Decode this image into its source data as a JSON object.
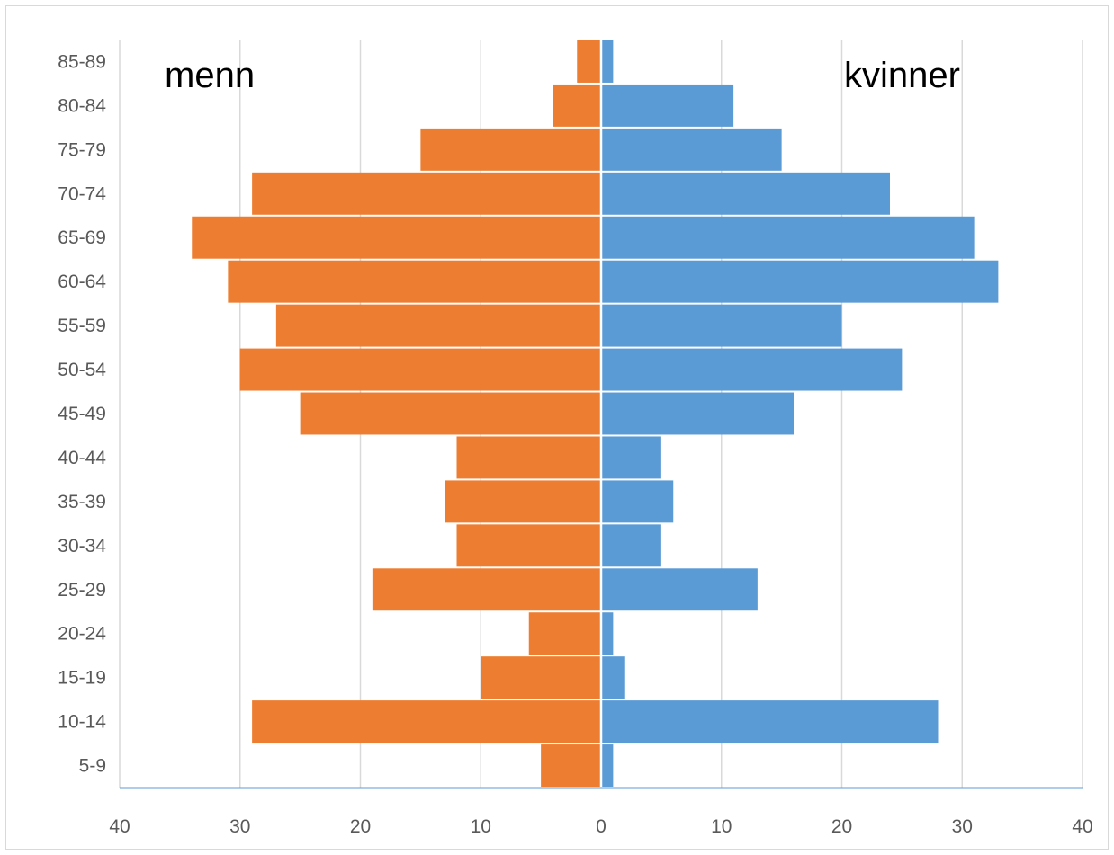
{
  "chart_data": {
    "type": "bar",
    "orientation": "horizontal",
    "layout": "population-pyramid",
    "categories": [
      "85-89",
      "80-84",
      "75-79",
      "70-74",
      "65-69",
      "60-64",
      "55-59",
      "50-54",
      "45-49",
      "40-44",
      "35-39",
      "30-34",
      "25-29",
      "20-24",
      "15-19",
      "10-14",
      "5-9"
    ],
    "series": [
      {
        "name": "menn",
        "side": "left",
        "color": "#ED7D31",
        "values": [
          2,
          4,
          15,
          29,
          34,
          31,
          27,
          30,
          25,
          12,
          13,
          12,
          19,
          6,
          10,
          29,
          5
        ]
      },
      {
        "name": "kvinner",
        "side": "right",
        "color": "#5B9BD5",
        "values": [
          1,
          11,
          15,
          24,
          31,
          33,
          20,
          25,
          16,
          5,
          6,
          5,
          13,
          1,
          2,
          28,
          1
        ]
      }
    ],
    "x_ticks": [
      "40",
      "30",
      "20",
      "10",
      "0",
      "10",
      "20",
      "30",
      "40"
    ],
    "xlim": [
      -40,
      40
    ],
    "grid": "vertical",
    "annotations": [
      "menn",
      "kvinner"
    ]
  }
}
